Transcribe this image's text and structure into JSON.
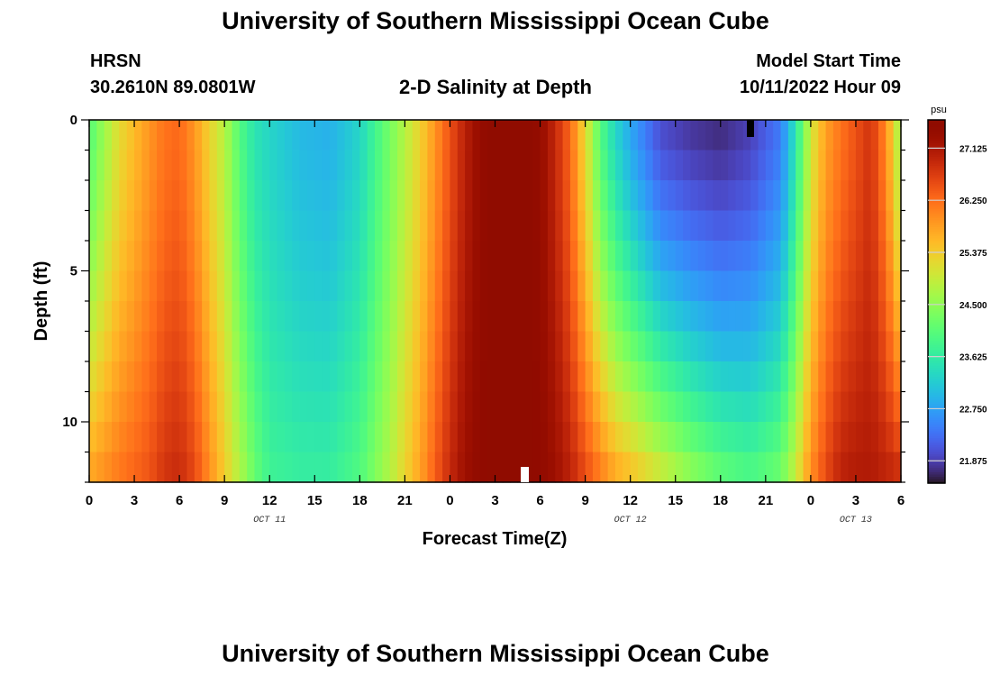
{
  "header": {
    "title": "University of Southern Mississippi Ocean Cube",
    "station": "HRSN",
    "coords": "30.2610N  89.0801W",
    "subtitle": "2-D Salinity at Depth",
    "start_label": "Model Start Time",
    "start_value": "10/11/2022 Hour 09"
  },
  "footer": {
    "title": "University of Southern Mississippi Ocean Cube"
  },
  "chart_data": {
    "type": "heatmap",
    "title": "2-D Salinity at Depth",
    "xlabel": "Forecast Time(Z)",
    "ylabel": "Depth (ft)",
    "x_hours_range": [
      0,
      54
    ],
    "y_depth_range": [
      0,
      12
    ],
    "x_tick_labels": [
      "0",
      "3",
      "6",
      "9",
      "12",
      "15",
      "18",
      "21",
      "0",
      "3",
      "6",
      "9",
      "12",
      "15",
      "18",
      "21",
      "0",
      "3",
      "6"
    ],
    "y_tick_labels": [
      "0",
      "5",
      "10"
    ],
    "y_tick_values": [
      0,
      5,
      10
    ],
    "date_labels": [
      {
        "text": "OCT 11",
        "hour": 12
      },
      {
        "text": "OCT 12",
        "hour": 36
      },
      {
        "text": "OCT 13",
        "hour": 51
      }
    ],
    "colorbar": {
      "unit": "psu",
      "range": [
        21.5,
        27.6
      ],
      "tick_labels": [
        "27.125",
        "26.250",
        "25.375",
        "24.500",
        "23.625",
        "22.750",
        "21.875"
      ],
      "tick_values": [
        27.125,
        26.25,
        25.375,
        24.5,
        23.625,
        22.75,
        21.875
      ]
    },
    "salinity_model": {
      "description": "approximate salinity (psu) vs forecast hour, at surface and bottom depth",
      "hours": [
        0,
        2,
        4,
        5,
        6,
        7,
        8,
        9,
        10,
        11,
        12,
        14,
        16,
        18,
        20,
        22,
        23,
        24,
        25,
        26,
        27,
        28,
        29,
        30,
        31,
        32,
        33,
        34,
        35,
        36,
        38,
        40,
        42,
        44,
        46,
        47,
        48,
        49,
        50,
        51,
        52,
        53,
        54
      ],
      "surface": [
        24.0,
        25.2,
        25.9,
        26.2,
        26.3,
        25.9,
        25.3,
        24.8,
        24.0,
        23.5,
        23.3,
        23.0,
        22.9,
        23.3,
        24.3,
        25.3,
        25.9,
        26.5,
        27.0,
        27.4,
        27.6,
        27.6,
        27.6,
        27.4,
        26.9,
        26.3,
        25.2,
        24.0,
        23.3,
        22.8,
        22.0,
        21.8,
        21.7,
        21.9,
        22.4,
        23.5,
        25.0,
        25.8,
        26.2,
        26.5,
        26.8,
        26.0,
        24.5
      ],
      "bottom": [
        25.8,
        26.2,
        26.5,
        26.8,
        26.9,
        26.6,
        26.0,
        25.4,
        24.8,
        24.2,
        23.8,
        23.7,
        23.7,
        24.0,
        24.8,
        25.8,
        26.4,
        26.9,
        27.3,
        27.5,
        27.6,
        27.6,
        27.6,
        27.5,
        27.3,
        27.0,
        26.6,
        26.2,
        25.8,
        25.6,
        25.1,
        24.6,
        24.2,
        24.0,
        24.3,
        25.0,
        26.0,
        26.6,
        27.0,
        27.1,
        27.1,
        27.0,
        26.9
      ]
    }
  }
}
